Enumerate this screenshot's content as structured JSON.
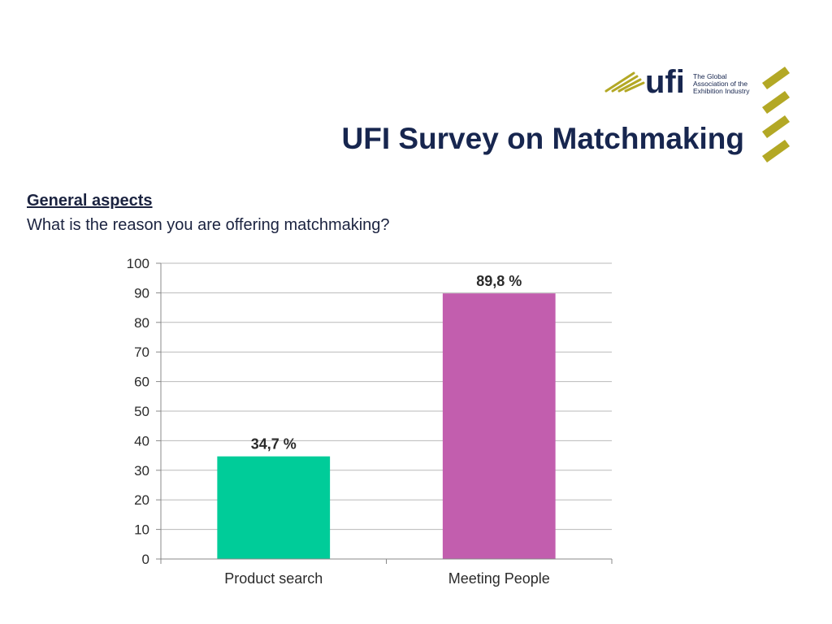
{
  "header": {
    "title": "UFI Survey on Matchmaking",
    "logo": {
      "wordmark": "ufi",
      "tagline_lines": [
        "The Global",
        "Association of the",
        "Exhibition Industry"
      ],
      "color_dark": "#17264f",
      "color_accent": "#b3a825"
    }
  },
  "content": {
    "section_heading": "General aspects",
    "question": "What is the reason you are offering matchmaking?"
  },
  "chart_data": {
    "type": "bar",
    "categories": [
      "Product search",
      "Meeting People"
    ],
    "values": [
      34.7,
      89.8
    ],
    "data_labels": [
      "34,7 %",
      "89,8 %"
    ],
    "colors": [
      "#00cc99",
      "#c25eae"
    ],
    "ylim": [
      0,
      100
    ],
    "yticks": [
      0,
      10,
      20,
      30,
      40,
      50,
      60,
      70,
      80,
      90,
      100
    ],
    "grid": true,
    "legend": "none"
  }
}
